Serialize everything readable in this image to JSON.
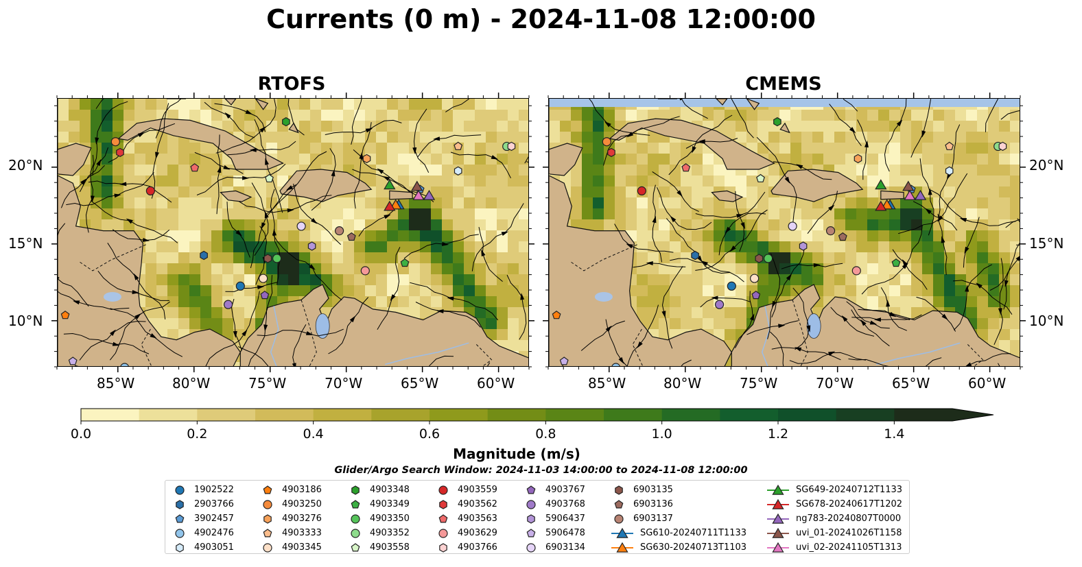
{
  "title": "Currents (0 m) - 2024-11-08 12:00:00",
  "panels": [
    {
      "name": "RTOFS",
      "land_mask_top": false
    },
    {
      "name": "CMEMS",
      "land_mask_top": true
    }
  ],
  "map": {
    "lon_range": [
      -89.0,
      -58.0
    ],
    "lat_range": [
      7.0,
      24.5
    ],
    "lon_ticks": [
      "85°W",
      "80°W",
      "75°W",
      "70°W",
      "65°W",
      "60°W"
    ],
    "lat_ticks": [
      "20°N",
      "15°N",
      "10°N"
    ]
  },
  "colorbar": {
    "label": "Magnitude (m/s)",
    "tick_labels": [
      "0.0",
      "0.2",
      "0.4",
      "0.6",
      "0.8",
      "1.0",
      "1.2",
      "1.4"
    ],
    "levels": [
      0.0,
      0.1,
      0.2,
      0.3,
      0.4,
      0.5,
      0.6,
      0.7,
      0.8,
      0.9,
      1.0,
      1.1,
      1.2,
      1.3,
      1.4,
      1.5
    ],
    "colors": [
      "#fbf4c0",
      "#ede09a",
      "#dfcb79",
      "#d2bb5a",
      "#c1b040",
      "#a8a32c",
      "#8f9a1c",
      "#738d16",
      "#5a8516",
      "#3e7a1b",
      "#246b24",
      "#135e2d",
      "#10502a",
      "#183f22",
      "#1d2c1a"
    ],
    "extend": "max"
  },
  "search_window": "Glider/Argo Search Window: 2024-11-03 14:00:00 to 2024-11-08 12:00:00",
  "legend_items": [
    {
      "label": "1902522",
      "color": "#1f77b4",
      "marker": "circle",
      "lon": -77.0,
      "lat": 12.3
    },
    {
      "label": "2903766",
      "color": "#2a6fa8",
      "marker": "hexagon",
      "lon": -79.4,
      "lat": 14.3
    },
    {
      "label": "3902457",
      "color": "#5b9bd5",
      "marker": "pentagon",
      "lon": -65.2,
      "lat": 18.6
    },
    {
      "label": "4902476",
      "color": "#92c5eb",
      "marker": "circle",
      "lon": -84.6,
      "lat": 7.0
    },
    {
      "label": "4903051",
      "color": "#d6ecfa",
      "marker": "hexagon",
      "lon": -62.7,
      "lat": 19.8
    },
    {
      "label": "4903186",
      "color": "#ff7f0e",
      "marker": "pentagon",
      "lon": -88.5,
      "lat": 10.4
    },
    {
      "label": "4903250",
      "color": "#f58b3c",
      "marker": "circle",
      "lon": -85.2,
      "lat": 21.7
    },
    {
      "label": "4903276",
      "color": "#f7a25a",
      "marker": "hexagon",
      "lon": -68.7,
      "lat": 20.6
    },
    {
      "label": "4903333",
      "color": "#fbbd8c",
      "marker": "pentagon",
      "lon": -62.7,
      "lat": 21.4
    },
    {
      "label": "4903345",
      "color": "#fde0c8",
      "marker": "circle",
      "lon": -75.5,
      "lat": 12.8
    },
    {
      "label": "4903348",
      "color": "#2ca02c",
      "marker": "hexagon",
      "lon": -74.0,
      "lat": 23.0
    },
    {
      "label": "4903349",
      "color": "#3cb043",
      "marker": "pentagon",
      "lon": -66.2,
      "lat": 13.8
    },
    {
      "label": "4903350",
      "color": "#55c45a",
      "marker": "circle",
      "lon": -74.6,
      "lat": 14.1
    },
    {
      "label": "4903352",
      "color": "#8edc8c",
      "marker": "circle",
      "lon": -59.5,
      "lat": 21.4
    },
    {
      "label": "4903558",
      "color": "#d8f5c8",
      "marker": "pentagon",
      "lon": -75.1,
      "lat": 19.3
    },
    {
      "label": "4903559",
      "color": "#d62728",
      "marker": "circle",
      "lon": -82.9,
      "lat": 18.5
    },
    {
      "label": "4903562",
      "color": "#e0393a",
      "marker": "hexagon",
      "lon": -84.9,
      "lat": 21.0
    },
    {
      "label": "4903563",
      "color": "#ef6a6a",
      "marker": "pentagon",
      "lon": -80.0,
      "lat": 20.0
    },
    {
      "label": "4903629",
      "color": "#f59999",
      "marker": "circle",
      "lon": -68.8,
      "lat": 13.3
    },
    {
      "label": "4903766",
      "color": "#fcd2d2",
      "marker": "hexagon",
      "lon": -59.2,
      "lat": 21.4
    },
    {
      "label": "4903767",
      "color": "#9467bd",
      "marker": "pentagon",
      "lon": -75.4,
      "lat": 11.7
    },
    {
      "label": "4903768",
      "color": "#a07ac9",
      "marker": "circle",
      "lon": -77.8,
      "lat": 11.1
    },
    {
      "label": "5906437",
      "color": "#b395d8",
      "marker": "hexagon",
      "lon": -72.3,
      "lat": 14.9
    },
    {
      "label": "5906478",
      "color": "#c8b0e8",
      "marker": "pentagon",
      "lon": -88.0,
      "lat": 7.4
    },
    {
      "label": "6903134",
      "color": "#e5d4f7",
      "marker": "circle",
      "lon": -73.0,
      "lat": 16.2
    },
    {
      "label": "6903135",
      "color": "#8c564b",
      "marker": "hexagon",
      "lon": -75.2,
      "lat": 14.1
    },
    {
      "label": "6903136",
      "color": "#9c6b5f",
      "marker": "pentagon",
      "lon": -69.7,
      "lat": 15.5
    },
    {
      "label": "6903137",
      "color": "#b88373",
      "marker": "circle",
      "lon": -70.5,
      "lat": 15.9
    },
    {
      "label": "SG610-20240711T1133",
      "color": "#1f77b4",
      "marker": "triangle",
      "line": true,
      "lon": -66.6,
      "lat": 17.6
    },
    {
      "label": "SG630-20240713T1103",
      "color": "#ff7f0e",
      "marker": "triangle",
      "line": true,
      "lon": -66.8,
      "lat": 17.6
    },
    {
      "label": "SG649-20240712T1133",
      "color": "#2ca02c",
      "marker": "triangle",
      "line": true,
      "lon": -67.2,
      "lat": 18.9
    },
    {
      "label": "SG678-20240617T1202",
      "color": "#d62728",
      "marker": "triangle",
      "line": true,
      "lon": -67.2,
      "lat": 17.5
    },
    {
      "label": "ng783-20240807T0000",
      "color": "#9467bd",
      "marker": "triangle",
      "line": true,
      "lon": -64.6,
      "lat": 18.2
    },
    {
      "label": "uvi_01-20241026T1158",
      "color": "#8c564b",
      "marker": "triangle",
      "line": true,
      "lon": -65.4,
      "lat": 18.8
    },
    {
      "label": "uvi_02-20241105T1313",
      "color": "#e377c2",
      "marker": "triangle",
      "line": true,
      "lon": -65.3,
      "lat": 18.2
    }
  ]
}
